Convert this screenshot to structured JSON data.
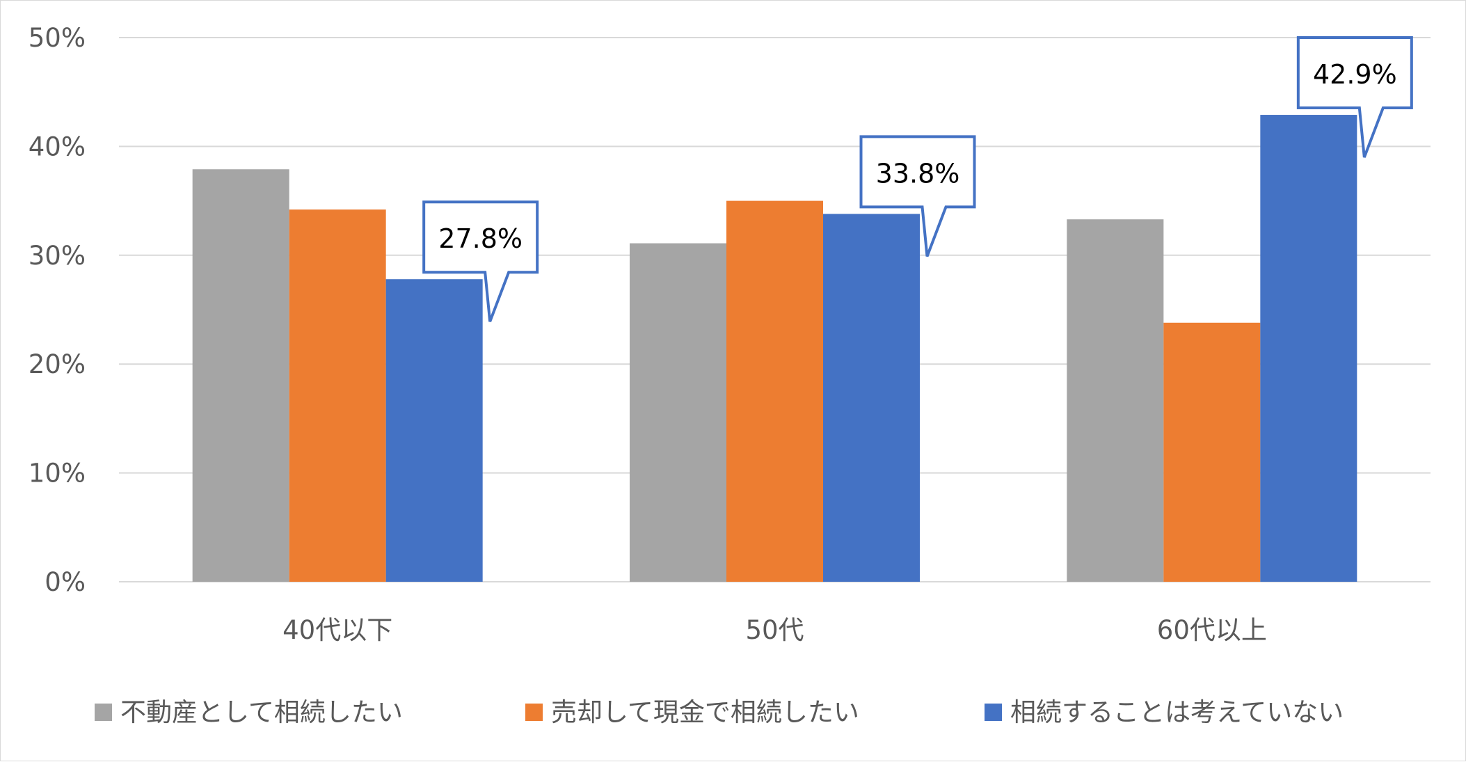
{
  "chart_data": {
    "type": "bar",
    "categories": [
      "40代以下",
      "50代",
      "60代以上"
    ],
    "series": [
      {
        "name": "不動産として相続したい",
        "color": "#a5a5a5",
        "values": [
          37.9,
          31.1,
          33.3
        ]
      },
      {
        "name": "売却して現金で相続したい",
        "color": "#ed7d31",
        "values": [
          34.2,
          35.0,
          23.8
        ]
      },
      {
        "name": "相続することは考えていない",
        "color": "#4472c4",
        "values": [
          27.8,
          33.8,
          42.9
        ]
      }
    ],
    "ylim": [
      0,
      50
    ],
    "yticks": [
      0,
      10,
      20,
      30,
      40,
      50
    ],
    "ytick_labels": [
      "0%",
      "10%",
      "20%",
      "30%",
      "40%",
      "50%"
    ],
    "callouts": [
      {
        "series": 2,
        "category": 0,
        "label": "27.8%"
      },
      {
        "series": 2,
        "category": 1,
        "label": "33.8%"
      },
      {
        "series": 2,
        "category": 2,
        "label": "42.9%"
      }
    ],
    "grid": true,
    "legend": "bottom",
    "title": "",
    "xlabel": "",
    "ylabel": ""
  }
}
